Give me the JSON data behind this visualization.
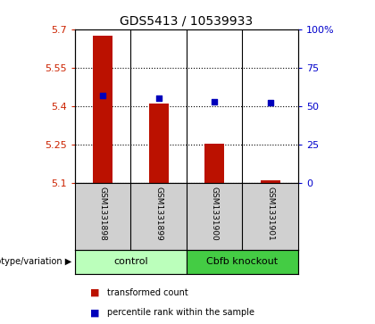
{
  "title": "GDS5413 / 10539933",
  "samples": [
    "GSM1331898",
    "GSM1331899",
    "GSM1331900",
    "GSM1331901"
  ],
  "transformed_count": [
    5.675,
    5.41,
    5.253,
    5.112
  ],
  "percentile_rank": [
    57,
    55,
    53,
    52
  ],
  "ylim_left": [
    5.1,
    5.7
  ],
  "ylim_right": [
    0,
    100
  ],
  "yticks_left": [
    5.1,
    5.25,
    5.4,
    5.55,
    5.7
  ],
  "yticks_right": [
    0,
    25,
    50,
    75,
    100
  ],
  "ytick_labels_right": [
    "0",
    "25",
    "50",
    "75",
    "100%"
  ],
  "bar_color": "#bb1100",
  "dot_color": "#0000bb",
  "bar_baseline": 5.1,
  "groups": [
    {
      "label": "control",
      "samples": [
        0,
        1
      ],
      "color": "#bbffbb"
    },
    {
      "label": "Cbfb knockout",
      "samples": [
        2,
        3
      ],
      "color": "#44cc44"
    }
  ],
  "group_label_prefix": "genotype/variation",
  "legend_items": [
    {
      "label": "transformed count",
      "color": "#bb1100"
    },
    {
      "label": "percentile rank within the sample",
      "color": "#0000bb"
    }
  ],
  "grid_color": "#000000",
  "tick_label_color_left": "#cc2200",
  "tick_label_color_right": "#0000cc",
  "sample_bg_color": "#d0d0d0",
  "plot_bg_color": "#ffffff",
  "fig_bg_color": "#ffffff"
}
